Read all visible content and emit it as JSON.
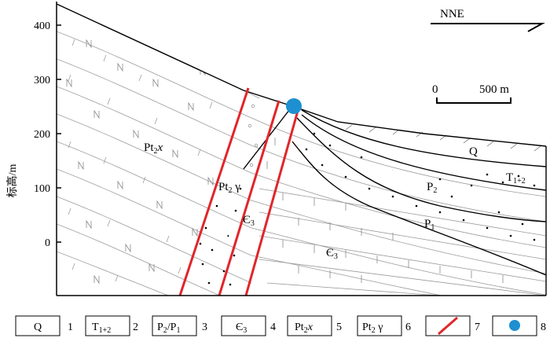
{
  "diagram": {
    "orientation": "NNE",
    "scale_label": "500 m",
    "scale_zero": "0",
    "y_axis": {
      "label": "标高/m",
      "ticks": [
        "0",
        "100",
        "200",
        "300",
        "400"
      ]
    },
    "labels": {
      "pt2x": {
        "main": "Pt",
        "sub": "2",
        "tail": "x"
      },
      "pt2g": {
        "main": "Pt",
        "sub": "2",
        "tail": " γ"
      },
      "e3_upper": {
        "main": "Є",
        "sub": "3"
      },
      "e3_lower": {
        "main": "Є",
        "sub": "3"
      },
      "q": "Q",
      "t12": {
        "main": "T",
        "sub": "1+2"
      },
      "p2": {
        "main": "P",
        "sub": "2"
      },
      "p1": {
        "main": "P",
        "sub": "1"
      }
    },
    "colors": {
      "fault": "#e0262a",
      "drill_point": "#1e8fd0"
    }
  },
  "legend": [
    {
      "box": {
        "main": "Q",
        "sub": ""
      },
      "num": "1"
    },
    {
      "box": {
        "main": "T",
        "sub": "1+2"
      },
      "num": "2"
    },
    {
      "box": {
        "main": "P",
        "sub": "2",
        "tail": "/P",
        "sub2": "1"
      },
      "num": "3"
    },
    {
      "box": {
        "main": "Є",
        "sub": "3"
      },
      "num": "4"
    },
    {
      "box": {
        "main": "Pt",
        "sub": "2",
        "tail": "x"
      },
      "num": "5"
    },
    {
      "box": {
        "main": "Pt",
        "sub": "2",
        "tail": " γ"
      },
      "num": "6"
    },
    {
      "box": {
        "icon": "red-fault-line-icon"
      },
      "num": "7"
    },
    {
      "box": {
        "icon": "blue-dot-icon"
      },
      "num": "8"
    }
  ]
}
